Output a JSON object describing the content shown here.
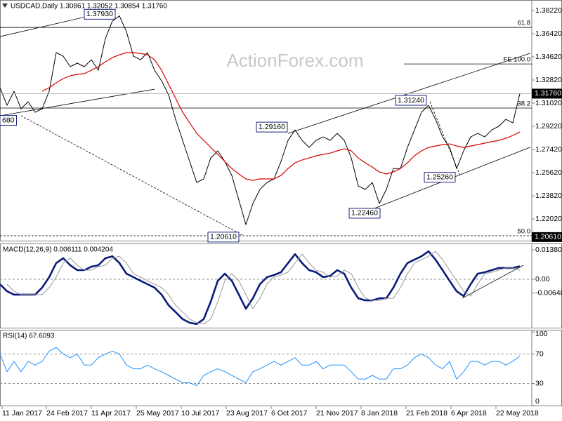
{
  "chart_data": [
    {
      "type": "line",
      "title": "USDCAD,Daily  1.30861 1.32052 1.30854 1.31760",
      "watermark": "ActionForex.com",
      "x": [
        0,
        1,
        2,
        3,
        4,
        5,
        6,
        7,
        8,
        9,
        10,
        11,
        12,
        13,
        14,
        15,
        16,
        17,
        18,
        19,
        20,
        21,
        22,
        23,
        24,
        25,
        26,
        27,
        28,
        29,
        30,
        31,
        32,
        33,
        34,
        35,
        36,
        37,
        38,
        39,
        40,
        41,
        42,
        43,
        44,
        45,
        46,
        47,
        48,
        49,
        50,
        51,
        52,
        53,
        54,
        55,
        56,
        57,
        58,
        59,
        60,
        61,
        62,
        63,
        64,
        65,
        66,
        67,
        68,
        69,
        70,
        71,
        72,
        73,
        74
      ],
      "xlim": [
        0,
        75.7
      ],
      "xticks": [
        {
          "value": 0.3,
          "label": "11 Jan 2017"
        },
        {
          "value": 6.6,
          "label": "24 Feb 2017"
        },
        {
          "value": 13.0,
          "label": "11 Apr 2017"
        },
        {
          "value": 19.4,
          "label": "25 May 2017"
        },
        {
          "value": 25.8,
          "label": "10 Jul 2017"
        },
        {
          "value": 32.2,
          "label": "23 Aug 2017"
        },
        {
          "value": 38.6,
          "label": "6 Oct 2017"
        },
        {
          "value": 45.0,
          "label": "21 Nov 2017"
        },
        {
          "value": 51.4,
          "label": "8 Jan 2018"
        },
        {
          "value": 57.8,
          "label": "21 Feb 2018"
        },
        {
          "value": 64.2,
          "label": "6 Apr 2018"
        },
        {
          "value": 70.6,
          "label": "22 May 2018"
        }
      ],
      "ylim": [
        1.2033,
        1.3904
      ],
      "yticks": [
        {
          "value": 1.3822,
          "label": "1.38220"
        },
        {
          "value": 1.3642,
          "label": "1.36420"
        },
        {
          "value": 1.3462,
          "label": "1.34620"
        },
        {
          "value": 1.3282,
          "label": "1.32820"
        },
        {
          "value": 1.3102,
          "label": "1.31020"
        },
        {
          "value": 1.2922,
          "label": "1.29220"
        },
        {
          "value": 1.2742,
          "label": "1.27420"
        },
        {
          "value": 1.2562,
          "label": "1.25620"
        },
        {
          "value": 1.2382,
          "label": "1.23820"
        },
        {
          "value": 1.2202,
          "label": "1.22020"
        }
      ],
      "series": [
        {
          "color": "#000000",
          "width": 1,
          "values": [
            1.3222,
            1.3085,
            1.3195,
            1.3058,
            1.3113,
            1.3031,
            1.3058,
            1.3195,
            1.3495,
            1.3467,
            1.3386,
            1.3413,
            1.3386,
            1.344,
            1.3358,
            1.3604,
            1.374,
            1.378,
            1.3658,
            1.3467,
            1.344,
            1.3495,
            1.3358,
            1.3276,
            1.3167,
            1.2976,
            1.2813,
            1.2649,
            1.2485,
            1.2513,
            1.2676,
            1.2731,
            1.2649,
            1.254,
            1.2349,
            1.2158,
            1.2322,
            1.2431,
            1.2485,
            1.2513,
            1.2649,
            1.2813,
            1.2894,
            1.2813,
            1.2758,
            1.2813,
            1.284,
            1.2813,
            1.2867,
            1.2813,
            1.2676,
            1.2458,
            1.2431,
            1.2485,
            1.2322,
            1.2431,
            1.2594,
            1.2594,
            1.2758,
            1.2894,
            1.3031,
            1.3085,
            1.2976,
            1.284,
            1.2758,
            1.2594,
            1.2731,
            1.284,
            1.2867,
            1.284,
            1.2894,
            1.2922,
            1.2976,
            1.2949,
            1.3176
          ]
        },
        {
          "color": "#d40000",
          "width": 1.2,
          "values": [
            null,
            null,
            null,
            null,
            null,
            null,
            1.3195,
            1.3222,
            1.326,
            1.3293,
            1.3315,
            1.3326,
            1.3331,
            1.3358,
            1.3386,
            1.3424,
            1.3456,
            1.3478,
            1.3495,
            1.3495,
            1.3489,
            1.3478,
            1.344,
            1.3358,
            1.3249,
            1.314,
            1.3031,
            1.2949,
            1.2867,
            1.2813,
            1.2758,
            1.2704,
            1.2649,
            1.2594,
            1.2551,
            1.2513,
            1.2502,
            1.2513,
            1.2513,
            1.2513,
            1.254,
            1.2594,
            1.2638,
            1.266,
            1.2676,
            1.2693,
            1.2704,
            1.2714,
            1.2731,
            1.2747,
            1.2731,
            1.2676,
            1.2638,
            1.2605,
            1.2567,
            1.2551,
            1.2567,
            1.2594,
            1.2638,
            1.2693,
            1.2731,
            1.2758,
            1.2769,
            1.278,
            1.2785,
            1.2769,
            1.2758,
            1.2769,
            1.278,
            1.2791,
            1.2802,
            1.2813,
            1.2829,
            1.2851,
            1.2878
          ]
        }
      ],
      "trendlines": [
        {
          "x": [
            0,
            16.5
          ],
          "y": [
            1.362,
            1.3827
          ],
          "style": "solid"
        },
        {
          "x": [
            0,
            22
          ],
          "y": [
            1.3004,
            1.3211
          ],
          "style": "solid"
        },
        {
          "x": [
            3,
            34.5
          ],
          "y": [
            1.3004,
            1.2076
          ],
          "style": "dashed"
        },
        {
          "x": [
            41,
            75.5
          ],
          "y": [
            1.2867,
            1.349
          ],
          "style": "solid"
        },
        {
          "x": [
            52.5,
            75.5
          ],
          "y": [
            1.2267,
            1.276
          ],
          "style": "solid"
        },
        {
          "x": [
            61.2,
            65.5
          ],
          "y": [
            1.3113,
            1.254
          ],
          "style": "dashed"
        }
      ],
      "levels": [
        {
          "label": "61.8",
          "value": 1.3691,
          "x": 0,
          "style": "solid"
        },
        {
          "label": "FE 100.0",
          "value": 1.3407,
          "x": 57.5,
          "style": "solid"
        },
        {
          "label": "38.2",
          "value": 1.3064,
          "x": 0,
          "style": "solid"
        },
        {
          "label": "50.0",
          "value": 1.2071,
          "x": 0,
          "style": "dashed"
        }
      ],
      "annotations": [
        {
          "label": "1.37930",
          "value": 1.3793,
          "x": 12.0
        },
        {
          "label": "1.29160",
          "value": 1.2916,
          "x": 36.5
        },
        {
          "label": "1.20610",
          "value": 1.2061,
          "x": 29.6
        },
        {
          "label": "1.22460",
          "value": 1.2246,
          "x": 49.7
        },
        {
          "label": "1.31240",
          "value": 1.3124,
          "x": 56.3
        },
        {
          "label": "1.25260",
          "value": 1.2526,
          "x": 60.4
        },
        {
          "label": "680",
          "value": 1.2968,
          "x": 0
        }
      ],
      "price_labels": [
        {
          "label": "1.31760",
          "value": 1.3176,
          "line": true
        },
        {
          "label": "1.20610",
          "value": 1.2061,
          "line": false
        }
      ]
    },
    {
      "type": "line",
      "title": "MACD(12,26,9) 0.006111 0.004204",
      "ylim": [
        -0.0227,
        0.0168
      ],
      "yticks": [
        0.013802,
        {
          "value": 0,
          "label": "0.00"
        },
        -0.006488
      ],
      "levels": [
        0
      ],
      "series": [
        {
          "color": "#0a1a7a",
          "width": 2.6,
          "values": [
            -0.0023,
            -0.0056,
            -0.0072,
            -0.0072,
            -0.0072,
            -0.0072,
            -0.0039,
            0.001,
            0.0076,
            0.0099,
            0.0066,
            0.0043,
            0.0043,
            0.0059,
            0.0066,
            0.0099,
            0.0108,
            0.0076,
            0.0026,
            0.001,
            -0.0007,
            -0.0023,
            -0.0039,
            -0.0072,
            -0.0122,
            -0.0154,
            -0.0187,
            -0.0204,
            -0.021,
            -0.0187,
            -0.0105,
            -0.0007,
            0.0026,
            -0.0007,
            -0.0072,
            -0.0138,
            -0.0089,
            -0.0023,
            0.001,
            0.002,
            0.0033,
            0.0076,
            0.0118,
            0.0076,
            0.0043,
            0.0033,
            0.001,
            0.0016,
            0.0043,
            0.0026,
            -0.0039,
            -0.0089,
            -0.0099,
            -0.0099,
            -0.0089,
            -0.0089,
            -0.0039,
            0.0026,
            0.0076,
            0.0092,
            0.0108,
            0.0131,
            0.0092,
            0.0043,
            -0.0007,
            -0.0056,
            -0.0079,
            -0.0023,
            0.0026,
            0.0033,
            0.0043,
            0.0053,
            0.0053,
            0.0053,
            0.0061
          ]
        },
        {
          "color": "#9a9a9a",
          "width": 1,
          "values": [
            null,
            -0.0023,
            -0.0056,
            -0.0072,
            -0.0072,
            -0.0072,
            -0.0072,
            -0.0039,
            0.001,
            0.0076,
            0.0099,
            0.0066,
            0.0043,
            0.0043,
            0.0059,
            0.0066,
            0.0099,
            0.0108,
            0.0076,
            0.0026,
            0.001,
            -0.0007,
            -0.0023,
            -0.0039,
            -0.0072,
            -0.0122,
            -0.0154,
            -0.0187,
            -0.0204,
            -0.021,
            -0.0187,
            -0.0105,
            -0.0007,
            0.0026,
            -0.0007,
            -0.0072,
            -0.0138,
            -0.0089,
            -0.0023,
            0.001,
            0.002,
            0.0033,
            0.0076,
            0.0118,
            0.0076,
            0.0043,
            0.0033,
            0.001,
            0.0016,
            0.0043,
            0.0026,
            -0.0039,
            -0.0089,
            -0.0099,
            -0.0099,
            -0.0089,
            -0.0089,
            -0.0039,
            0.0026,
            0.0076,
            0.0092,
            0.0108,
            0.0131,
            0.0092,
            0.0043,
            -0.0007,
            -0.0056,
            -0.0079,
            -0.0023,
            0.0026,
            0.0033,
            0.0043,
            0.0053,
            0.0053,
            0.0042
          ]
        }
      ],
      "trendlines": [
        {
          "x": [
            65.8,
            74.5
          ],
          "y": [
            -0.0089,
            0.0066
          ],
          "style": "solid"
        }
      ]
    },
    {
      "type": "line",
      "title": "RSI(14) 67.6093",
      "ylim": [
        0,
        103
      ],
      "yticks": [
        100,
        70,
        30,
        0
      ],
      "levels": [
        70,
        30
      ],
      "series": [
        {
          "color": "#1e90ff",
          "width": 1,
          "values": [
            70,
            46,
            60,
            46,
            60,
            55,
            60,
            74,
            79,
            70,
            65,
            70,
            55,
            55,
            65,
            70,
            74,
            70,
            55,
            50,
            50,
            55,
            50,
            46,
            41,
            36,
            31,
            31,
            27,
            41,
            46,
            50,
            46,
            41,
            36,
            31,
            46,
            50,
            55,
            60,
            55,
            60,
            65,
            55,
            55,
            60,
            50,
            55,
            55,
            55,
            46,
            36,
            36,
            41,
            36,
            36,
            50,
            50,
            55,
            65,
            70,
            65,
            55,
            50,
            60,
            36,
            46,
            60,
            60,
            55,
            60,
            60,
            55,
            60,
            67.6
          ]
        }
      ]
    }
  ]
}
